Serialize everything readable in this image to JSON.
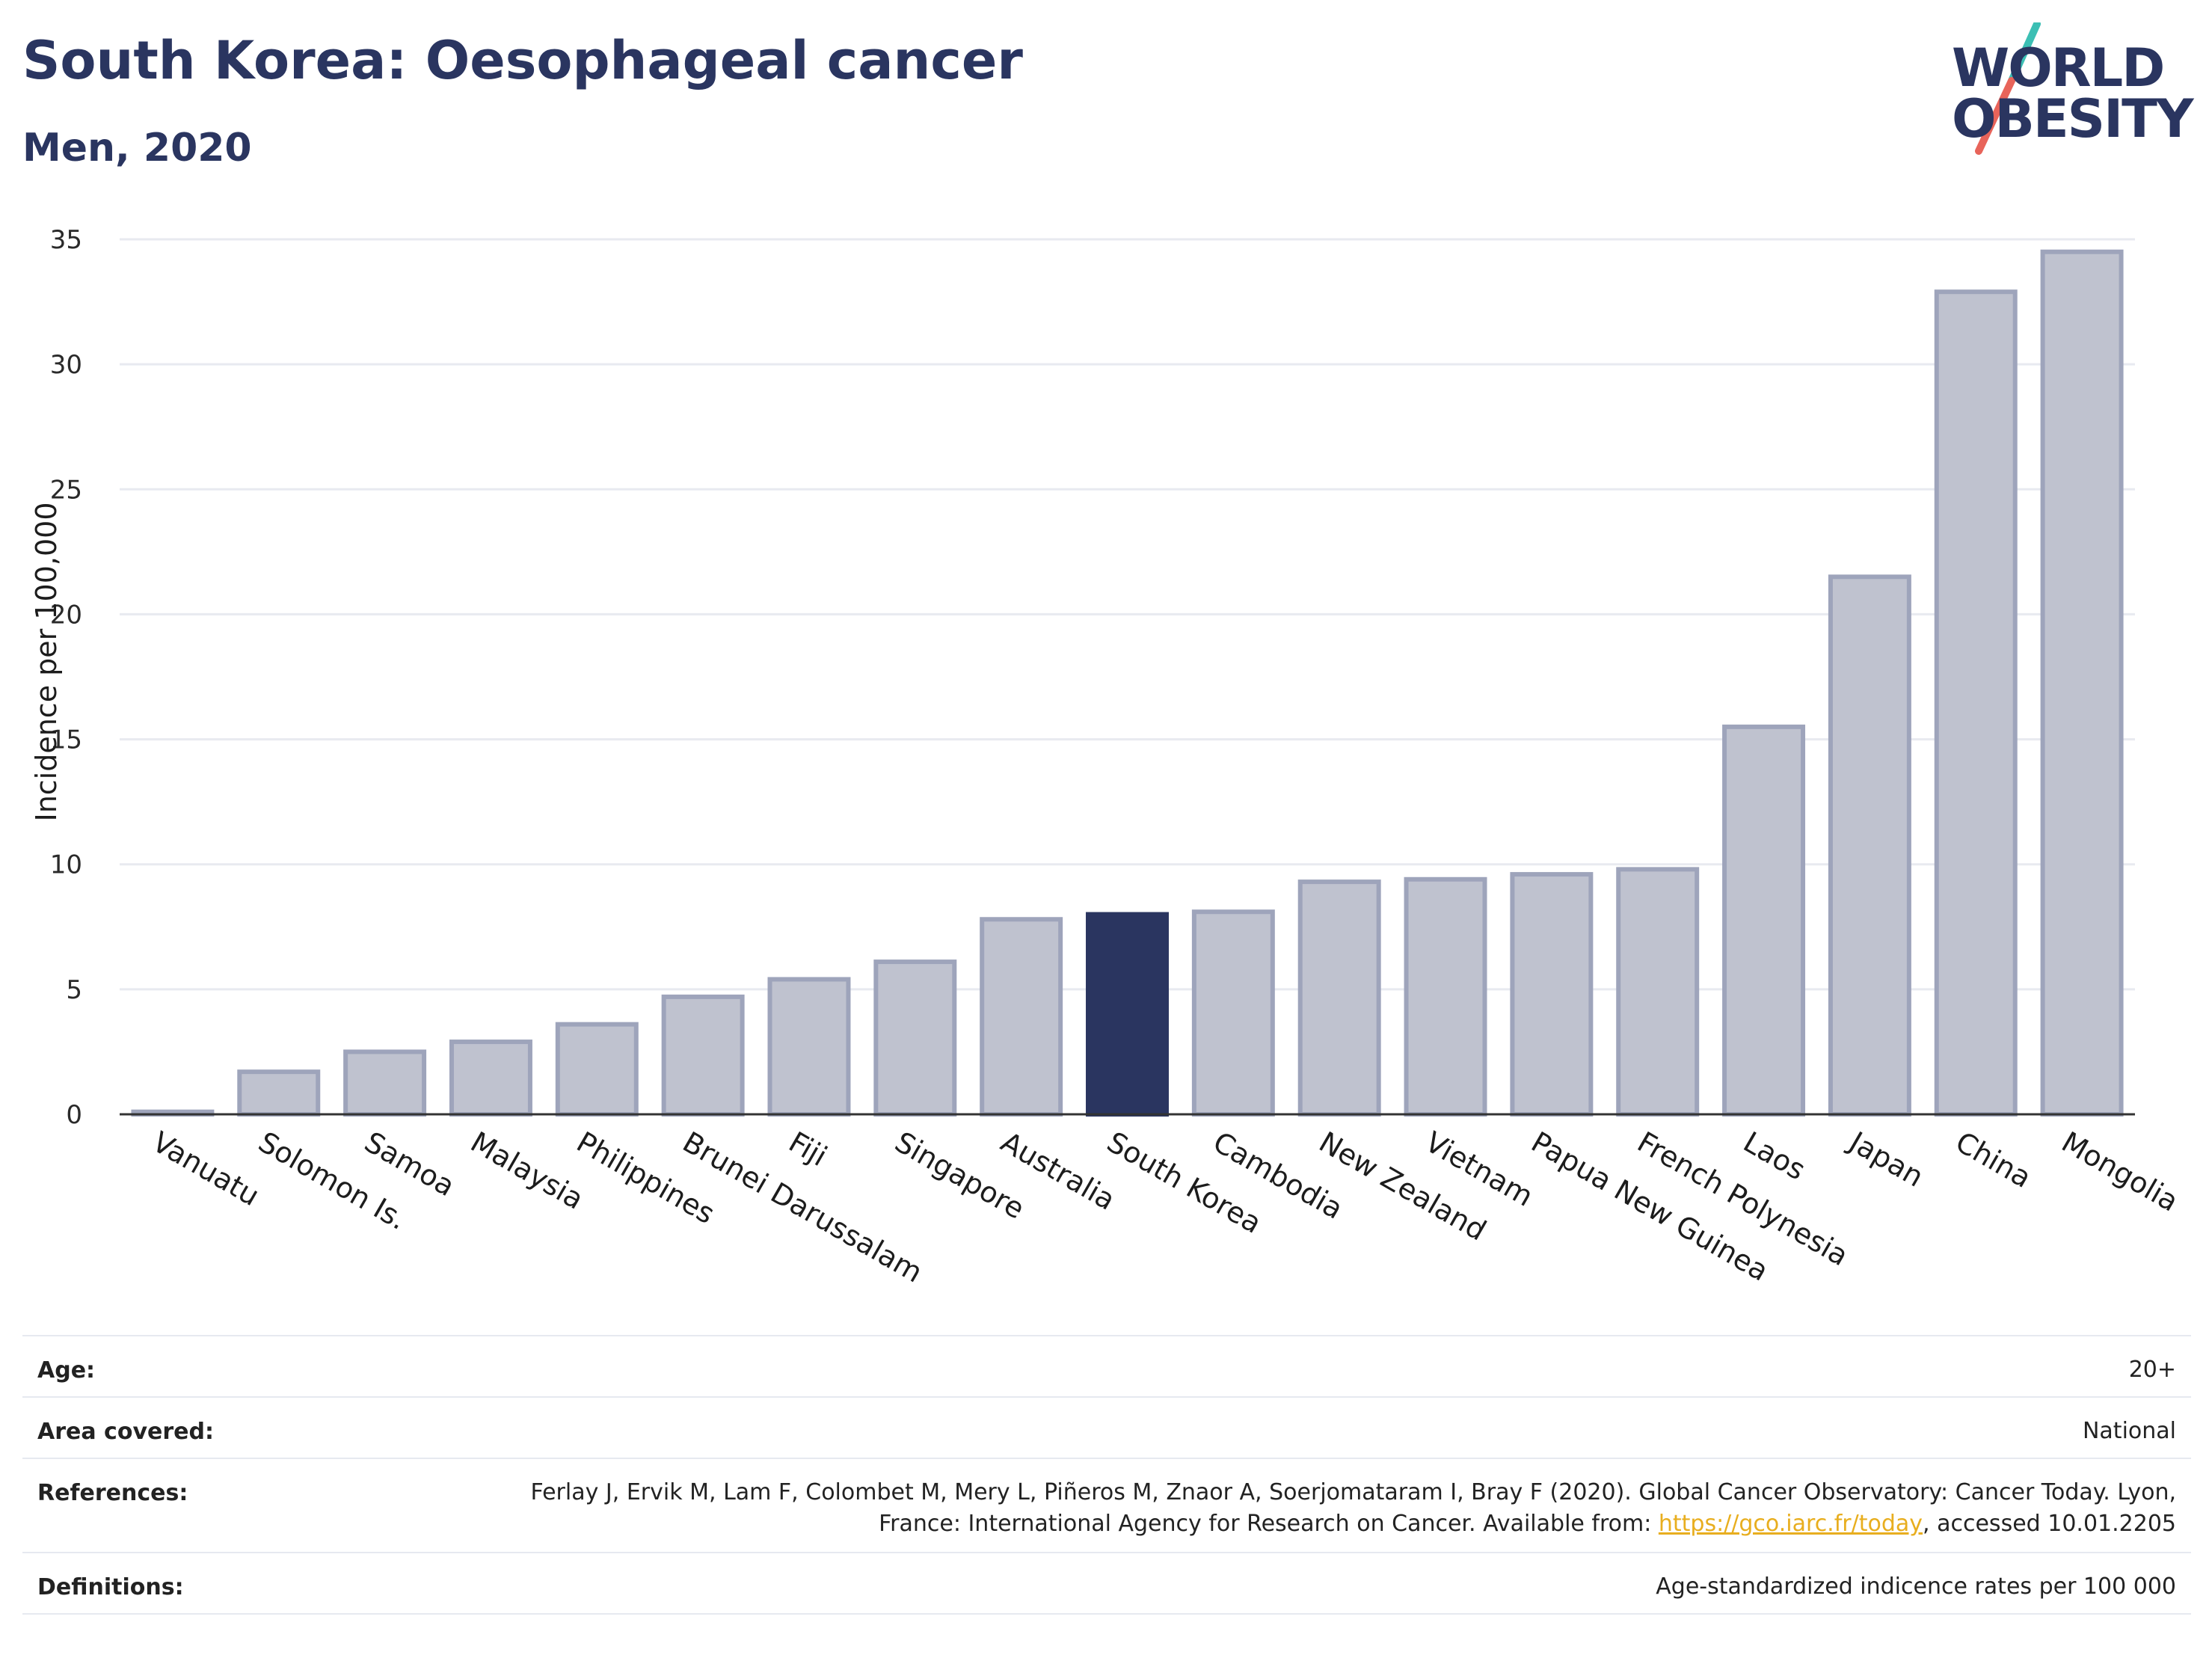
{
  "header": {
    "title": "South Korea: Oesophageal cancer",
    "subtitle": "Men, 2020"
  },
  "logo": {
    "line1": "WORLD",
    "line2": "OBESITY",
    "colors": {
      "teal": "#3cbfb4",
      "coral": "#e8645a",
      "navy": "#2a3560"
    }
  },
  "chart_data": {
    "type": "bar",
    "title": "South Korea: Oesophageal cancer",
    "subtitle": "Men, 2020",
    "xlabel": "",
    "ylabel": "Incidence per 100,000",
    "ylim": [
      0,
      35
    ],
    "yticks": [
      0,
      5,
      10,
      15,
      20,
      25,
      30,
      35
    ],
    "grid": true,
    "highlight": "South Korea",
    "colors": {
      "bar": "#bfc2cf",
      "bar_edge": "#9ea4bb",
      "highlight": "#2a3560"
    },
    "categories": [
      "Vanuatu",
      "Solomon Is.",
      "Samoa",
      "Malaysia",
      "Philippines",
      "Brunei Darussalam",
      "Fiji",
      "Singapore",
      "Australia",
      "South Korea",
      "Cambodia",
      "New Zealand",
      "Vietnam",
      "Papua New Guinea",
      "French Polynesia",
      "Laos",
      "Japan",
      "China",
      "Mongolia"
    ],
    "values": [
      0.1,
      1.7,
      2.5,
      2.9,
      3.6,
      4.7,
      5.4,
      6.1,
      7.8,
      8.0,
      8.1,
      9.3,
      9.4,
      9.6,
      9.8,
      15.5,
      21.5,
      32.9,
      34.5
    ]
  },
  "info": {
    "age": {
      "label": "Age:",
      "value": "20+"
    },
    "area": {
      "label": "Area covered:",
      "value": "National"
    },
    "references": {
      "label": "References:",
      "text_before": "Ferlay J, Ervik M, Lam F, Colombet M, Mery L, Piñeros M, Znaor A, Soerjomataram I, Bray F (2020). Global Cancer Observatory: Cancer Today. Lyon, France: International Agency for Research on Cancer. Available from: ",
      "link": "https://gco.iarc.fr/today",
      "text_after": ", accessed 10.01.2205"
    },
    "definitions": {
      "label": "Definitions:",
      "value": "Age-standardized indicence rates per 100 000"
    }
  }
}
